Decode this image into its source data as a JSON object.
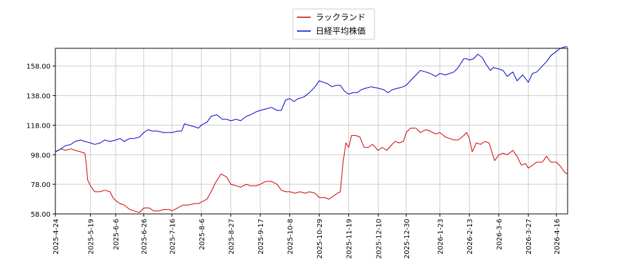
{
  "chart_data": {
    "type": "line",
    "title": "",
    "xlabel": "",
    "ylabel": "",
    "legend_position": "top-center",
    "grid": true,
    "ylim": [
      58,
      170
    ],
    "yticks": [
      58.0,
      78.0,
      98.0,
      118.0,
      138.0,
      158.0
    ],
    "ytick_labels": [
      "58.00",
      "78.00",
      "98.00",
      "118.00",
      "138.00",
      "158.00"
    ],
    "xlim": [
      "2025-04-24",
      "2026-04-24"
    ],
    "xticks": [
      "2025-04-24",
      "2025-05-19",
      "2025-06-06",
      "2025-06-26",
      "2025-07-16",
      "2025-08-06",
      "2025-08-27",
      "2025-09-17",
      "2025-10-08",
      "2025-10-29",
      "2025-11-19",
      "2025-12-10",
      "2025-12-30",
      "2026-01-23",
      "2026-02-13",
      "2026-03-06",
      "2026-03-27",
      "2026-04-16"
    ],
    "xtick_labels": [
      "2025-4-24",
      "2025-5-19",
      "2025-6-6",
      "2025-6-26",
      "2025-7-16",
      "2025-8-6",
      "2025-8-27",
      "2025-9-17",
      "2025-10-8",
      "2025-10-29",
      "2025-11-19",
      "2025-12-10",
      "2025-12-30",
      "2026-1-23",
      "2026-2-13",
      "2026-3-6",
      "2026-3-27",
      "2026-4-16"
    ],
    "series": [
      {
        "name": "ラックランド",
        "color": "#cc0000",
        "points": [
          [
            "2025-04-24",
            100
          ],
          [
            "2025-04-28",
            102
          ],
          [
            "2025-05-01",
            101
          ],
          [
            "2025-05-05",
            102
          ],
          [
            "2025-05-08",
            101
          ],
          [
            "2025-05-12",
            100
          ],
          [
            "2025-05-15",
            99
          ],
          [
            "2025-05-16",
            92
          ],
          [
            "2025-05-17",
            81
          ],
          [
            "2025-05-19",
            77
          ],
          [
            "2025-05-22",
            73
          ],
          [
            "2025-05-26",
            73
          ],
          [
            "2025-05-29",
            74
          ],
          [
            "2025-06-02",
            73
          ],
          [
            "2025-06-04",
            69
          ],
          [
            "2025-06-06",
            67
          ],
          [
            "2025-06-09",
            65
          ],
          [
            "2025-06-12",
            64
          ],
          [
            "2025-06-16",
            61
          ],
          [
            "2025-06-19",
            60
          ],
          [
            "2025-06-23",
            59
          ],
          [
            "2025-06-26",
            62
          ],
          [
            "2025-06-30",
            62
          ],
          [
            "2025-07-03",
            60
          ],
          [
            "2025-07-07",
            60
          ],
          [
            "2025-07-10",
            61
          ],
          [
            "2025-07-14",
            61
          ],
          [
            "2025-07-16",
            60
          ],
          [
            "2025-07-20",
            62
          ],
          [
            "2025-07-24",
            64
          ],
          [
            "2025-07-28",
            64
          ],
          [
            "2025-08-01",
            65
          ],
          [
            "2025-08-04",
            65
          ],
          [
            "2025-08-06",
            66
          ],
          [
            "2025-08-10",
            68
          ],
          [
            "2025-08-13",
            73
          ],
          [
            "2025-08-16",
            79
          ],
          [
            "2025-08-20",
            85
          ],
          [
            "2025-08-24",
            83
          ],
          [
            "2025-08-27",
            78
          ],
          [
            "2025-08-31",
            77
          ],
          [
            "2025-09-03",
            76
          ],
          [
            "2025-09-07",
            78
          ],
          [
            "2025-09-10",
            77
          ],
          [
            "2025-09-14",
            77
          ],
          [
            "2025-09-17",
            78
          ],
          [
            "2025-09-21",
            80
          ],
          [
            "2025-09-25",
            80
          ],
          [
            "2025-09-29",
            78
          ],
          [
            "2025-10-02",
            74
          ],
          [
            "2025-10-05",
            73
          ],
          [
            "2025-10-08",
            73
          ],
          [
            "2025-10-12",
            72
          ],
          [
            "2025-10-15",
            73
          ],
          [
            "2025-10-19",
            72
          ],
          [
            "2025-10-22",
            73
          ],
          [
            "2025-10-26",
            72
          ],
          [
            "2025-10-29",
            69
          ],
          [
            "2025-11-02",
            69
          ],
          [
            "2025-11-05",
            68
          ],
          [
            "2025-11-08",
            70
          ],
          [
            "2025-11-11",
            72
          ],
          [
            "2025-11-13",
            73
          ],
          [
            "2025-11-15",
            93
          ],
          [
            "2025-11-17",
            106
          ],
          [
            "2025-11-19",
            103
          ],
          [
            "2025-11-21",
            111
          ],
          [
            "2025-11-24",
            111
          ],
          [
            "2025-11-27",
            110
          ],
          [
            "2025-11-30",
            103
          ],
          [
            "2025-12-03",
            103
          ],
          [
            "2025-12-06",
            105
          ],
          [
            "2025-12-10",
            101
          ],
          [
            "2025-12-13",
            103
          ],
          [
            "2025-12-16",
            101
          ],
          [
            "2025-12-19",
            104
          ],
          [
            "2025-12-22",
            107
          ],
          [
            "2025-12-25",
            106
          ],
          [
            "2025-12-28",
            107
          ],
          [
            "2025-12-30",
            113
          ],
          [
            "2026-01-02",
            116
          ],
          [
            "2026-01-06",
            116
          ],
          [
            "2026-01-09",
            113
          ],
          [
            "2026-01-13",
            115
          ],
          [
            "2026-01-16",
            114
          ],
          [
            "2026-01-20",
            112
          ],
          [
            "2026-01-23",
            113
          ],
          [
            "2026-01-27",
            110
          ],
          [
            "2026-01-30",
            109
          ],
          [
            "2026-02-02",
            108
          ],
          [
            "2026-02-05",
            108
          ],
          [
            "2026-02-09",
            111
          ],
          [
            "2026-02-11",
            113
          ],
          [
            "2026-02-13",
            109
          ],
          [
            "2026-02-15",
            100
          ],
          [
            "2026-02-18",
            106
          ],
          [
            "2026-02-21",
            105
          ],
          [
            "2026-02-24",
            107
          ],
          [
            "2026-02-27",
            106
          ],
          [
            "2026-03-02",
            97
          ],
          [
            "2026-03-03",
            94
          ],
          [
            "2026-03-06",
            98
          ],
          [
            "2026-03-09",
            99
          ],
          [
            "2026-03-12",
            98
          ],
          [
            "2026-03-16",
            101
          ],
          [
            "2026-03-19",
            97
          ],
          [
            "2026-03-22",
            91
          ],
          [
            "2026-03-25",
            92
          ],
          [
            "2026-03-27",
            89
          ],
          [
            "2026-03-30",
            91
          ],
          [
            "2026-04-02",
            93
          ],
          [
            "2026-04-06",
            93
          ],
          [
            "2026-04-09",
            97
          ],
          [
            "2026-04-12",
            93
          ],
          [
            "2026-04-16",
            93
          ],
          [
            "2026-04-19",
            90
          ],
          [
            "2026-04-22",
            86
          ],
          [
            "2026-04-24",
            85
          ]
        ]
      },
      {
        "name": "日経平均株価",
        "color": "#0000cc",
        "points": [
          [
            "2025-04-24",
            100
          ],
          [
            "2025-04-28",
            102
          ],
          [
            "2025-05-01",
            104
          ],
          [
            "2025-05-05",
            105
          ],
          [
            "2025-05-08",
            107
          ],
          [
            "2025-05-12",
            108
          ],
          [
            "2025-05-15",
            107
          ],
          [
            "2025-05-19",
            106
          ],
          [
            "2025-05-22",
            105
          ],
          [
            "2025-05-26",
            106
          ],
          [
            "2025-05-29",
            108
          ],
          [
            "2025-06-02",
            107
          ],
          [
            "2025-06-06",
            108
          ],
          [
            "2025-06-09",
            109
          ],
          [
            "2025-06-12",
            107
          ],
          [
            "2025-06-16",
            109
          ],
          [
            "2025-06-19",
            109
          ],
          [
            "2025-06-23",
            110
          ],
          [
            "2025-06-26",
            113
          ],
          [
            "2025-06-29",
            115
          ],
          [
            "2025-07-02",
            114
          ],
          [
            "2025-07-06",
            114
          ],
          [
            "2025-07-10",
            113
          ],
          [
            "2025-07-14",
            113
          ],
          [
            "2025-07-16",
            113
          ],
          [
            "2025-07-20",
            114
          ],
          [
            "2025-07-23",
            114
          ],
          [
            "2025-07-25",
            119
          ],
          [
            "2025-07-28",
            118
          ],
          [
            "2025-08-01",
            117
          ],
          [
            "2025-08-04",
            116
          ],
          [
            "2025-08-06",
            118
          ],
          [
            "2025-08-10",
            120
          ],
          [
            "2025-08-13",
            124
          ],
          [
            "2025-08-17",
            125
          ],
          [
            "2025-08-21",
            122
          ],
          [
            "2025-08-24",
            122
          ],
          [
            "2025-08-27",
            121
          ],
          [
            "2025-08-31",
            122
          ],
          [
            "2025-09-03",
            121
          ],
          [
            "2025-09-07",
            124
          ],
          [
            "2025-09-10",
            125
          ],
          [
            "2025-09-14",
            127
          ],
          [
            "2025-09-17",
            128
          ],
          [
            "2025-09-21",
            129
          ],
          [
            "2025-09-25",
            130
          ],
          [
            "2025-09-29",
            128
          ],
          [
            "2025-10-02",
            128
          ],
          [
            "2025-10-05",
            135
          ],
          [
            "2025-10-08",
            136
          ],
          [
            "2025-10-11",
            134
          ],
          [
            "2025-10-14",
            136
          ],
          [
            "2025-10-18",
            137
          ],
          [
            "2025-10-22",
            140
          ],
          [
            "2025-10-26",
            144
          ],
          [
            "2025-10-29",
            148
          ],
          [
            "2025-11-01",
            147
          ],
          [
            "2025-11-04",
            146
          ],
          [
            "2025-11-07",
            144
          ],
          [
            "2025-11-10",
            145
          ],
          [
            "2025-11-13",
            145
          ],
          [
            "2025-11-16",
            141
          ],
          [
            "2025-11-19",
            139
          ],
          [
            "2025-11-22",
            140
          ],
          [
            "2025-11-25",
            140
          ],
          [
            "2025-11-28",
            142
          ],
          [
            "2025-12-01",
            143
          ],
          [
            "2025-12-05",
            144
          ],
          [
            "2025-12-10",
            143
          ],
          [
            "2025-12-14",
            142
          ],
          [
            "2025-12-17",
            140
          ],
          [
            "2025-12-20",
            142
          ],
          [
            "2025-12-24",
            143
          ],
          [
            "2025-12-28",
            144
          ],
          [
            "2025-12-30",
            145
          ],
          [
            "2026-01-02",
            148
          ],
          [
            "2026-01-06",
            152
          ],
          [
            "2026-01-09",
            155
          ],
          [
            "2026-01-13",
            154
          ],
          [
            "2026-01-16",
            153
          ],
          [
            "2026-01-20",
            151
          ],
          [
            "2026-01-23",
            153
          ],
          [
            "2026-01-27",
            152
          ],
          [
            "2026-01-30",
            153
          ],
          [
            "2026-02-02",
            154
          ],
          [
            "2026-02-05",
            157
          ],
          [
            "2026-02-09",
            163
          ],
          [
            "2026-02-11",
            163
          ],
          [
            "2026-02-13",
            162
          ],
          [
            "2026-02-16",
            163
          ],
          [
            "2026-02-19",
            166
          ],
          [
            "2026-02-22",
            164
          ],
          [
            "2026-02-25",
            159
          ],
          [
            "2026-02-28",
            155
          ],
          [
            "2026-03-02",
            157
          ],
          [
            "2026-03-06",
            156
          ],
          [
            "2026-03-09",
            155
          ],
          [
            "2026-03-12",
            151
          ],
          [
            "2026-03-16",
            154
          ],
          [
            "2026-03-19",
            148
          ],
          [
            "2026-03-23",
            152
          ],
          [
            "2026-03-27",
            147
          ],
          [
            "2026-03-30",
            153
          ],
          [
            "2026-04-02",
            154
          ],
          [
            "2026-04-06",
            158
          ],
          [
            "2026-04-09",
            161
          ],
          [
            "2026-04-12",
            165
          ],
          [
            "2026-04-16",
            168
          ],
          [
            "2026-04-19",
            170
          ],
          [
            "2026-04-22",
            171
          ],
          [
            "2026-04-24",
            171
          ]
        ]
      }
    ]
  }
}
